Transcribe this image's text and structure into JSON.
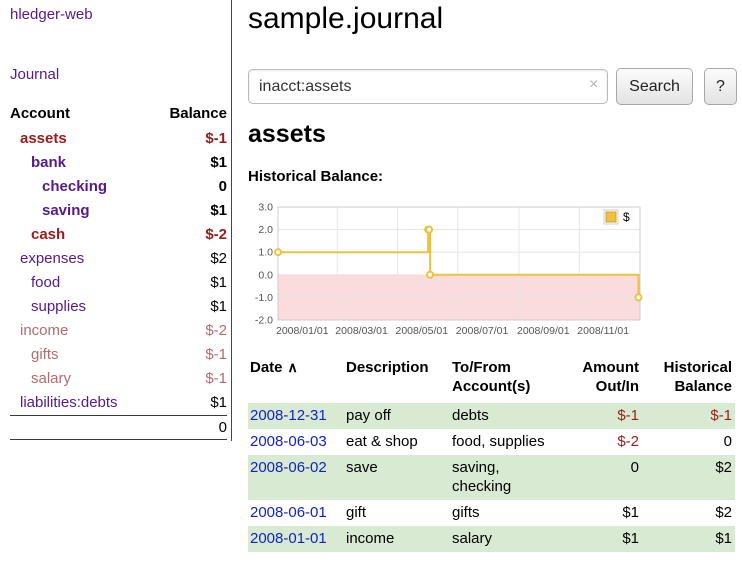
{
  "sidebar": {
    "brand": "hledger-web",
    "nav": {
      "journal": "Journal"
    },
    "table": {
      "account_header": "Account",
      "balance_header": "Balance",
      "total": "0"
    },
    "accounts": [
      {
        "name": "assets",
        "indent": 0,
        "balance": "$-1",
        "name_class": "bold neg",
        "balance_class": "bold neg"
      },
      {
        "name": "bank",
        "indent": 1,
        "balance": "$1",
        "name_class": "bold link",
        "balance_class": "bold"
      },
      {
        "name": "checking",
        "indent": 2,
        "balance": "0",
        "name_class": "bold link",
        "balance_class": "bold"
      },
      {
        "name": "saving",
        "indent": 2,
        "balance": "$1",
        "name_class": "bold link",
        "balance_class": "bold"
      },
      {
        "name": "cash",
        "indent": 1,
        "balance": "$-2",
        "name_class": "bold neg",
        "balance_class": "bold neg"
      },
      {
        "name": "expenses",
        "indent": 0,
        "balance": "$2",
        "name_class": "link",
        "balance_class": ""
      },
      {
        "name": "food",
        "indent": 1,
        "balance": "$1",
        "name_class": "link",
        "balance_class": ""
      },
      {
        "name": "supplies",
        "indent": 1,
        "balance": "$1",
        "name_class": "link",
        "balance_class": ""
      },
      {
        "name": "income",
        "indent": 0,
        "balance": "$-2",
        "name_class": "neg-soft",
        "balance_class": "neg-soft"
      },
      {
        "name": "gifts",
        "indent": 1,
        "balance": "$-1",
        "name_class": "neg-soft",
        "balance_class": "neg-soft"
      },
      {
        "name": "salary",
        "indent": 1,
        "balance": "$-1",
        "name_class": "neg-soft",
        "balance_class": "neg-soft"
      },
      {
        "name": "liabilities:debts",
        "indent": 0,
        "balance": "$1",
        "name_class": "link",
        "balance_class": ""
      }
    ]
  },
  "main": {
    "title": "sample.journal",
    "search": {
      "value": "inacct:assets",
      "clear_icon": "×",
      "button": "Search",
      "help_button": "?"
    },
    "account_heading": "assets",
    "chart_heading": "Historical Balance:"
  },
  "chart_data": {
    "type": "line",
    "step": true,
    "title": "Historical Balance",
    "series": [
      {
        "name": "$",
        "color": "#edc240",
        "points": [
          [
            "2008-01-01",
            1
          ],
          [
            "2008-06-01",
            2
          ],
          [
            "2008-06-02",
            2
          ],
          [
            "2008-06-03",
            0
          ],
          [
            "2008-12-31",
            -1
          ]
        ]
      }
    ],
    "ylim": [
      -2,
      3
    ],
    "yticks": [
      3.0,
      2.0,
      1.0,
      0.0,
      -1.0,
      -2.0
    ],
    "xtick_labels": [
      "2008/01/01",
      "2008/03/01",
      "2008/05/01",
      "2008/07/01",
      "2008/09/01",
      "2008/11/01"
    ],
    "xlim_days": [
      0,
      366.5
    ],
    "grid": true,
    "negative_fill": "#fbdcdc",
    "legend": {
      "label": "$",
      "position": "top-right"
    }
  },
  "register": {
    "headers": {
      "date": "Date",
      "sort_icon": "∧",
      "description": "Description",
      "account_l1": "To/From",
      "account_l2": "Account(s)",
      "amount_l1": "Amount",
      "amount_l2": "Out/In",
      "balance_l1": "Historical",
      "balance_l2": "Balance"
    },
    "rows": [
      {
        "date": "2008-12-31",
        "description": "pay off",
        "account": "debts",
        "amount": "$-1",
        "balance": "$-1",
        "amount_neg": true,
        "balance_neg": true,
        "shaded": true
      },
      {
        "date": "2008-06-03",
        "description": "eat & shop",
        "account": "food, supplies",
        "amount": "$-2",
        "balance": "0",
        "amount_neg": true,
        "balance_neg": false,
        "shaded": false
      },
      {
        "date": "2008-06-02",
        "description": "save",
        "account": "saving,\nchecking",
        "amount": "0",
        "balance": "$2",
        "amount_neg": false,
        "balance_neg": false,
        "shaded": true
      },
      {
        "date": "2008-06-01",
        "description": "gift",
        "account": "gifts",
        "amount": "$1",
        "balance": "$2",
        "amount_neg": false,
        "balance_neg": false,
        "shaded": false
      },
      {
        "date": "2008-01-01",
        "description": "income",
        "account": "salary",
        "amount": "$1",
        "balance": "$1",
        "amount_neg": false,
        "balance_neg": false,
        "shaded": true
      }
    ]
  },
  "colors": {
    "link_purple": "#551a8b",
    "date_blue": "#1122cc",
    "negative_strong": "#9e1b1b",
    "negative_soft": "#b06d6d",
    "row_green": "#d9ead3",
    "chart_line": "#edc240",
    "chart_negative_region": "#fbdcdc",
    "sidebar_divider": "#7d2b35"
  }
}
